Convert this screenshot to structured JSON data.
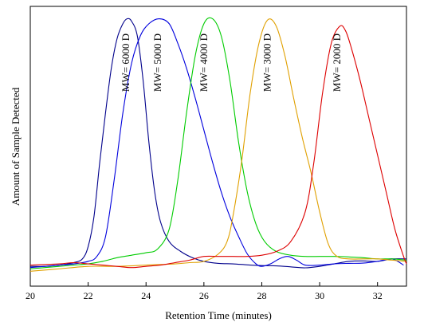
{
  "chart_data": {
    "type": "line",
    "xlabel": "Retention Time (minutes)",
    "ylabel": "Amount of Sample Detected",
    "xlim": [
      20,
      33
    ],
    "ylim": [
      -0.08,
      1.05
    ],
    "x_ticks": [
      "20",
      "22",
      "24",
      "26",
      "28",
      "30",
      "32"
    ],
    "y_ticks_shown": false,
    "grid": false,
    "series": [
      {
        "name": "MW= 6000 D",
        "color": "#00008b",
        "label_x": 23.3,
        "points": [
          [
            20.0,
            0.0
          ],
          [
            20.5,
            0.0
          ],
          [
            21.0,
            0.005
          ],
          [
            21.5,
            0.015
          ],
          [
            21.8,
            0.03
          ],
          [
            22.0,
            0.08
          ],
          [
            22.2,
            0.2
          ],
          [
            22.4,
            0.42
          ],
          [
            22.6,
            0.62
          ],
          [
            22.8,
            0.8
          ],
          [
            23.0,
            0.92
          ],
          [
            23.2,
            0.98
          ],
          [
            23.35,
            1.0
          ],
          [
            23.5,
            0.99
          ],
          [
            23.7,
            0.93
          ],
          [
            23.9,
            0.75
          ],
          [
            24.1,
            0.5
          ],
          [
            24.3,
            0.3
          ],
          [
            24.5,
            0.18
          ],
          [
            24.8,
            0.1
          ],
          [
            25.2,
            0.06
          ],
          [
            25.6,
            0.035
          ],
          [
            26.0,
            0.02
          ],
          [
            26.5,
            0.012
          ],
          [
            27.0,
            0.01
          ],
          [
            27.5,
            0.006
          ],
          [
            28.0,
            0.003
          ],
          [
            28.5,
            0.002
          ],
          [
            29.0,
            -0.002
          ],
          [
            29.5,
            -0.006
          ],
          [
            30.0,
            0.0
          ],
          [
            30.5,
            0.01
          ],
          [
            31.0,
            0.02
          ],
          [
            31.5,
            0.022
          ],
          [
            32.0,
            0.02
          ],
          [
            32.5,
            0.03
          ],
          [
            33.0,
            0.03
          ]
        ]
      },
      {
        "name": "MW= 5000 D",
        "color": "#0000dd",
        "label_x": 24.4,
        "points": [
          [
            20.0,
            -0.005
          ],
          [
            20.5,
            0.0
          ],
          [
            21.0,
            0.005
          ],
          [
            21.5,
            0.01
          ],
          [
            22.0,
            0.02
          ],
          [
            22.3,
            0.04
          ],
          [
            22.6,
            0.12
          ],
          [
            22.9,
            0.35
          ],
          [
            23.2,
            0.62
          ],
          [
            23.5,
            0.82
          ],
          [
            23.8,
            0.93
          ],
          [
            24.1,
            0.98
          ],
          [
            24.45,
            1.0
          ],
          [
            24.8,
            0.98
          ],
          [
            25.1,
            0.9
          ],
          [
            25.4,
            0.8
          ],
          [
            25.7,
            0.68
          ],
          [
            26.0,
            0.55
          ],
          [
            26.3,
            0.42
          ],
          [
            26.6,
            0.3
          ],
          [
            26.9,
            0.2
          ],
          [
            27.2,
            0.12
          ],
          [
            27.5,
            0.05
          ],
          [
            27.8,
            0.01
          ],
          [
            28.0,
            0.0
          ],
          [
            28.3,
            0.01
          ],
          [
            28.6,
            0.03
          ],
          [
            28.9,
            0.04
          ],
          [
            29.2,
            0.025
          ],
          [
            29.5,
            0.005
          ],
          [
            30.0,
            0.005
          ],
          [
            30.5,
            0.01
          ],
          [
            31.0,
            0.012
          ],
          [
            31.5,
            0.013
          ],
          [
            32.0,
            0.02
          ],
          [
            32.5,
            0.03
          ],
          [
            32.9,
            0.005
          ]
        ]
      },
      {
        "name": "MW= 4000 D",
        "color": "#00cc00",
        "label_x": 26.0,
        "points": [
          [
            20.0,
            -0.01
          ],
          [
            20.5,
            -0.005
          ],
          [
            21.0,
            0.0
          ],
          [
            21.5,
            0.005
          ],
          [
            22.0,
            0.01
          ],
          [
            22.5,
            0.02
          ],
          [
            23.0,
            0.035
          ],
          [
            23.5,
            0.045
          ],
          [
            24.0,
            0.055
          ],
          [
            24.4,
            0.07
          ],
          [
            24.8,
            0.15
          ],
          [
            25.1,
            0.35
          ],
          [
            25.4,
            0.62
          ],
          [
            25.7,
            0.85
          ],
          [
            26.0,
            0.98
          ],
          [
            26.3,
            1.0
          ],
          [
            26.6,
            0.93
          ],
          [
            26.9,
            0.75
          ],
          [
            27.2,
            0.5
          ],
          [
            27.5,
            0.3
          ],
          [
            27.8,
            0.17
          ],
          [
            28.1,
            0.1
          ],
          [
            28.5,
            0.06
          ],
          [
            29.0,
            0.045
          ],
          [
            29.5,
            0.04
          ],
          [
            30.0,
            0.04
          ],
          [
            30.5,
            0.04
          ],
          [
            31.0,
            0.038
          ],
          [
            31.5,
            0.035
          ],
          [
            32.0,
            0.03
          ],
          [
            32.5,
            0.03
          ],
          [
            33.0,
            0.025
          ]
        ]
      },
      {
        "name": "MW= 3000 D",
        "color": "#e0a000",
        "label_x": 28.2,
        "points": [
          [
            20.0,
            -0.02
          ],
          [
            21.0,
            -0.01
          ],
          [
            22.0,
            0.0
          ],
          [
            23.0,
            0.0
          ],
          [
            24.0,
            0.005
          ],
          [
            25.0,
            0.01
          ],
          [
            25.5,
            0.015
          ],
          [
            26.0,
            0.02
          ],
          [
            26.5,
            0.05
          ],
          [
            26.8,
            0.1
          ],
          [
            27.0,
            0.2
          ],
          [
            27.3,
            0.42
          ],
          [
            27.6,
            0.7
          ],
          [
            27.9,
            0.9
          ],
          [
            28.2,
            0.995
          ],
          [
            28.5,
            0.97
          ],
          [
            28.8,
            0.85
          ],
          [
            29.1,
            0.68
          ],
          [
            29.4,
            0.52
          ],
          [
            29.7,
            0.38
          ],
          [
            30.0,
            0.22
          ],
          [
            30.3,
            0.09
          ],
          [
            30.6,
            0.04
          ],
          [
            31.0,
            0.03
          ],
          [
            31.5,
            0.03
          ],
          [
            32.0,
            0.03
          ],
          [
            32.5,
            0.025
          ],
          [
            33.0,
            0.02
          ]
        ]
      },
      {
        "name": "MW= 2000 D",
        "color": "#dd0000",
        "label_x": 30.6,
        "points": [
          [
            20.0,
            0.005
          ],
          [
            21.0,
            0.01
          ],
          [
            21.5,
            0.015
          ],
          [
            22.0,
            0.01
          ],
          [
            22.5,
            0.005
          ],
          [
            23.0,
            0.0
          ],
          [
            23.5,
            -0.005
          ],
          [
            24.0,
            0.0
          ],
          [
            24.5,
            0.005
          ],
          [
            25.0,
            0.015
          ],
          [
            25.5,
            0.025
          ],
          [
            26.0,
            0.04
          ],
          [
            26.5,
            0.04
          ],
          [
            27.0,
            0.04
          ],
          [
            27.5,
            0.04
          ],
          [
            28.0,
            0.045
          ],
          [
            28.5,
            0.06
          ],
          [
            29.0,
            0.1
          ],
          [
            29.5,
            0.22
          ],
          [
            29.8,
            0.42
          ],
          [
            30.1,
            0.7
          ],
          [
            30.4,
            0.9
          ],
          [
            30.7,
            0.97
          ],
          [
            30.9,
            0.95
          ],
          [
            31.1,
            0.88
          ],
          [
            31.4,
            0.75
          ],
          [
            31.7,
            0.6
          ],
          [
            32.0,
            0.45
          ],
          [
            32.3,
            0.3
          ],
          [
            32.6,
            0.15
          ],
          [
            32.9,
            0.04
          ],
          [
            33.0,
            0.01
          ]
        ]
      }
    ]
  }
}
